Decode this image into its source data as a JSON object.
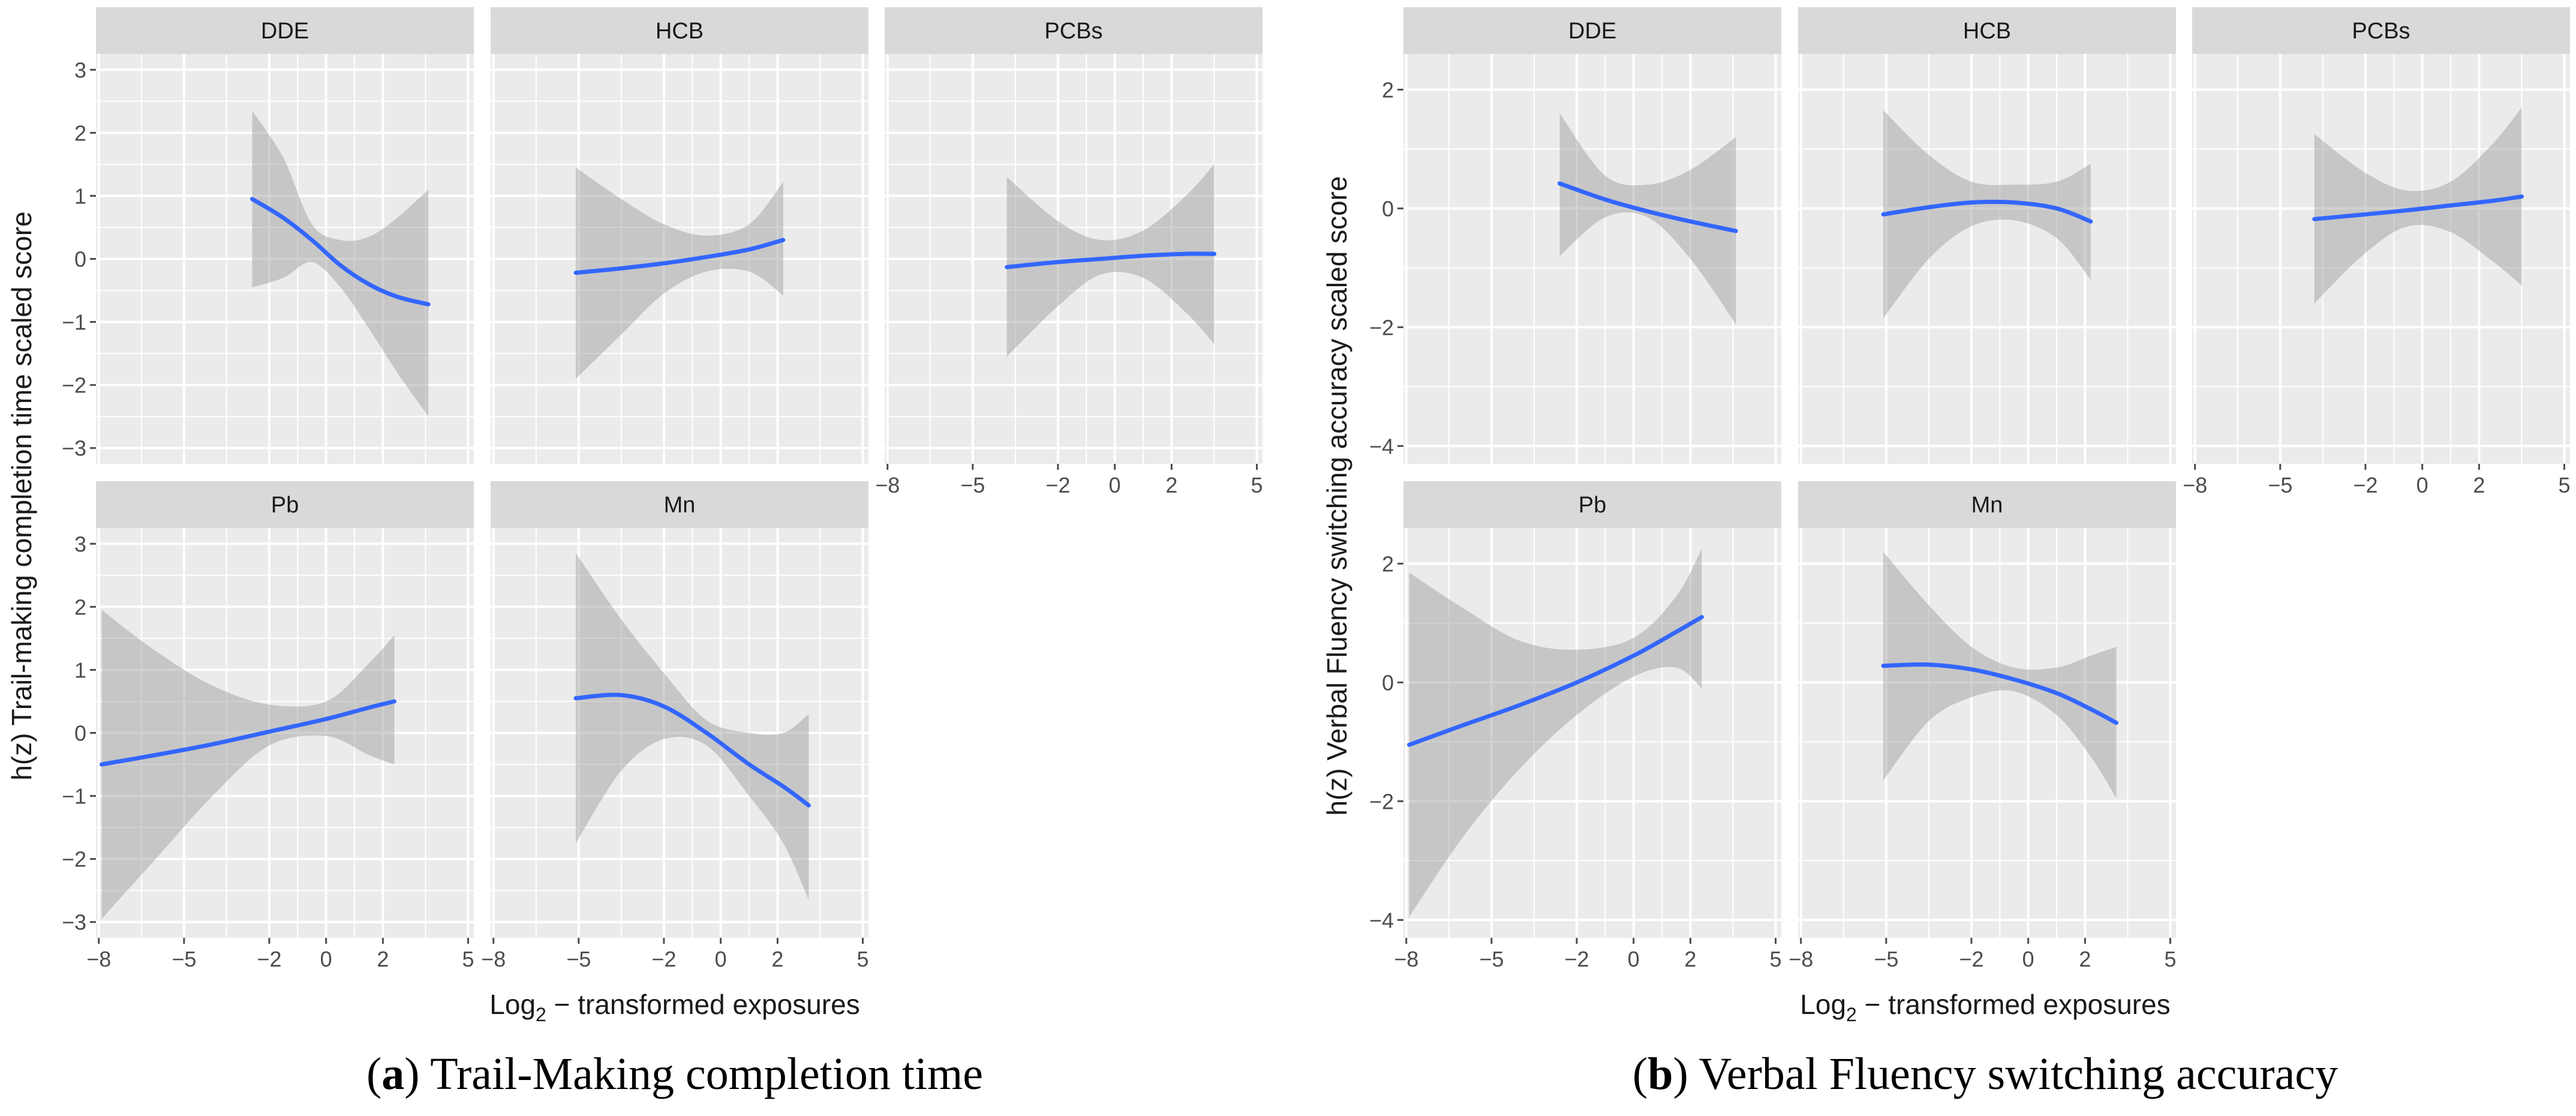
{
  "chart_data": [
    {
      "type": "line",
      "caption": {
        "letter": "a",
        "text": "Trail-Making completion time"
      },
      "ylabel": "h(z) Trail-making completion time scaled score",
      "xlabel": {
        "base": "Log",
        "sub": "2",
        "rest": " − transformed exposures"
      },
      "xlim": [
        -8.1,
        5.2
      ],
      "ylim": [
        -3.25,
        3.25
      ],
      "xticks": [
        -8,
        -5,
        -2,
        0,
        2,
        5
      ],
      "yticks": [
        -3,
        -2,
        -1,
        0,
        1,
        2,
        3
      ],
      "panels": [
        {
          "label": "DDE",
          "x": [
            -2.6,
            -1.5,
            -0.5,
            0.5,
            1.5,
            2.5,
            3.6
          ],
          "y": [
            0.95,
            0.65,
            0.3,
            -0.1,
            -0.4,
            -0.6,
            -0.72
          ],
          "lower": [
            -0.45,
            -0.3,
            -0.05,
            -0.45,
            -1.1,
            -1.8,
            -2.5
          ],
          "upper": [
            2.35,
            1.6,
            0.55,
            0.3,
            0.35,
            0.65,
            1.1
          ]
        },
        {
          "label": "HCB",
          "x": [
            -5.1,
            -3.5,
            -2,
            -0.5,
            1,
            2.2
          ],
          "y": [
            -0.22,
            -0.15,
            -0.07,
            0.03,
            0.15,
            0.3
          ],
          "lower": [
            -1.9,
            -1.2,
            -0.55,
            -0.2,
            -0.2,
            -0.58
          ],
          "upper": [
            1.45,
            0.95,
            0.55,
            0.37,
            0.55,
            1.22
          ]
        },
        {
          "label": "PCBs",
          "x": [
            -3.8,
            -2,
            -0.5,
            1,
            2.5,
            3.5
          ],
          "y": [
            -0.13,
            -0.05,
            0.0,
            0.05,
            0.08,
            0.08
          ],
          "lower": [
            -1.55,
            -0.75,
            -0.25,
            -0.3,
            -0.85,
            -1.35
          ],
          "upper": [
            1.3,
            0.6,
            0.3,
            0.45,
            1.0,
            1.5
          ]
        },
        {
          "label": "Pb",
          "x": [
            -7.9,
            -6,
            -4,
            -2,
            0,
            1.5,
            2.4
          ],
          "y": [
            -0.5,
            -0.35,
            -0.18,
            0.02,
            0.22,
            0.4,
            0.5
          ],
          "lower": [
            -2.95,
            -2.0,
            -1.0,
            -0.2,
            -0.05,
            -0.35,
            -0.5
          ],
          "upper": [
            1.95,
            1.3,
            0.75,
            0.45,
            0.5,
            1.1,
            1.55
          ]
        },
        {
          "label": "Mn",
          "x": [
            -5.1,
            -3.5,
            -2,
            -0.5,
            1,
            2.2,
            3.1
          ],
          "y": [
            0.55,
            0.6,
            0.42,
            0.0,
            -0.5,
            -0.85,
            -1.15
          ],
          "lower": [
            -1.75,
            -0.6,
            -0.1,
            -0.2,
            -1.0,
            -1.75,
            -2.65
          ],
          "upper": [
            2.85,
            1.8,
            0.95,
            0.2,
            0.0,
            0.0,
            0.3
          ]
        }
      ]
    },
    {
      "type": "line",
      "caption": {
        "letter": "b",
        "text": "Verbal Fluency switching accuracy"
      },
      "ylabel": "h(z) Verbal Fluency switching accuracy scaled score",
      "xlabel": {
        "base": "Log",
        "sub": "2",
        "rest": " − transformed exposures"
      },
      "xlim": [
        -8.1,
        5.2
      ],
      "ylim": [
        -4.3,
        2.6
      ],
      "xticks": [
        -8,
        -5,
        -2,
        0,
        2,
        5
      ],
      "yticks": [
        -4,
        -2,
        0,
        2
      ],
      "panels": [
        {
          "label": "DDE",
          "x": [
            -2.6,
            -1,
            0.5,
            2,
            3.6
          ],
          "y": [
            0.42,
            0.15,
            -0.05,
            -0.22,
            -0.38
          ],
          "lower": [
            -0.8,
            -0.15,
            -0.15,
            -0.85,
            -1.95
          ],
          "upper": [
            1.6,
            0.55,
            0.4,
            0.65,
            1.2
          ]
        },
        {
          "label": "HCB",
          "x": [
            -5.1,
            -3.5,
            -2,
            -0.5,
            1,
            2.2
          ],
          "y": [
            -0.1,
            0.02,
            0.1,
            0.1,
            0.0,
            -0.22
          ],
          "lower": [
            -1.85,
            -0.85,
            -0.3,
            -0.2,
            -0.5,
            -1.2
          ],
          "upper": [
            1.65,
            0.9,
            0.45,
            0.4,
            0.45,
            0.75
          ]
        },
        {
          "label": "PCBs",
          "x": [
            -3.8,
            -2,
            -0.5,
            1,
            2.5,
            3.5
          ],
          "y": [
            -0.18,
            -0.1,
            -0.03,
            0.05,
            0.13,
            0.2
          ],
          "lower": [
            -1.6,
            -0.75,
            -0.3,
            -0.4,
            -0.9,
            -1.3
          ],
          "upper": [
            1.25,
            0.6,
            0.3,
            0.45,
            1.1,
            1.7
          ]
        },
        {
          "label": "Pb",
          "x": [
            -7.9,
            -6,
            -4,
            -2,
            0,
            1.5,
            2.4
          ],
          "y": [
            -1.05,
            -0.72,
            -0.38,
            0.0,
            0.45,
            0.85,
            1.1
          ],
          "lower": [
            -3.95,
            -2.6,
            -1.45,
            -0.55,
            0.1,
            0.25,
            -0.1
          ],
          "upper": [
            1.85,
            1.25,
            0.7,
            0.55,
            0.75,
            1.45,
            2.25
          ]
        },
        {
          "label": "Mn",
          "x": [
            -5.1,
            -3.5,
            -2,
            -0.5,
            1,
            2.2,
            3.1
          ],
          "y": [
            0.28,
            0.3,
            0.22,
            0.05,
            -0.18,
            -0.45,
            -0.68
          ],
          "lower": [
            -1.65,
            -0.65,
            -0.25,
            -0.15,
            -0.55,
            -1.25,
            -1.95
          ],
          "upper": [
            2.2,
            1.3,
            0.6,
            0.25,
            0.25,
            0.45,
            0.6
          ]
        }
      ]
    }
  ],
  "colors": {
    "panel_bg": "#ebebeb",
    "strip_bg": "#d9d9d9",
    "ribbon": "#9a9a9a",
    "line": "#3366ff",
    "grid": "#ffffff",
    "text": "#1a1a1a",
    "tick_text": "#4d4d4d"
  }
}
